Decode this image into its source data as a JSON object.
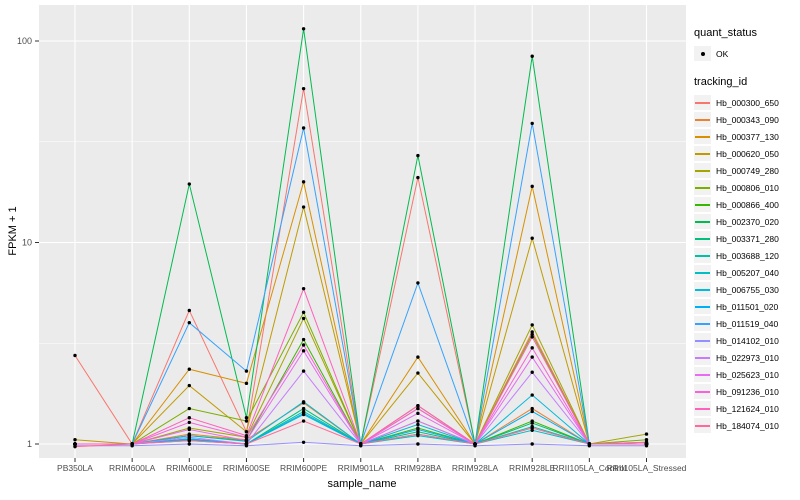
{
  "figure": {
    "panel_bg": "#EBEBEB",
    "grid_color": "#FFFFFF",
    "tick_color": "#333333",
    "tick_label_color": "#4D4D4D",
    "point_color": "#000000"
  },
  "legend": {
    "quant_status_title": "quant_status",
    "ok_label": "OK",
    "tracking_id_title": "tracking_id"
  },
  "chart_data": {
    "type": "line",
    "title": "",
    "xlabel": "sample_name",
    "ylabel": "FPKM + 1",
    "y_scale": "log10",
    "y_ticks": [
      1,
      10,
      100
    ],
    "ylim": [
      0.93,
      130
    ],
    "grid": "on",
    "legend_position": "right",
    "marker": "point",
    "categories": [
      "PB350LA",
      "RRIM600LA",
      "RRIM600LE",
      "RRIM600SE",
      "RRIM600PE",
      "RRIM901LA",
      "RRIM928BA",
      "RRIM928LA",
      "RRIM928LE",
      "RRII105LA_Control",
      "RRII105LA_Stressed"
    ],
    "series": [
      {
        "name": "Hb_000300_650",
        "color": "#F8766D",
        "values": [
          2.75,
          1,
          4.6,
          1.15,
          58,
          1,
          21,
          1,
          3.6,
          1,
          1
        ]
      },
      {
        "name": "Hb_000343_090",
        "color": "#EA8331",
        "values": [
          1,
          1,
          1.12,
          1.05,
          1.6,
          1,
          1.3,
          1,
          1.5,
          1,
          1
        ]
      },
      {
        "name": "Hb_000377_130",
        "color": "#D89000",
        "values": [
          1,
          1,
          2.35,
          2.0,
          20,
          1,
          2.7,
          1,
          19,
          1,
          1
        ]
      },
      {
        "name": "Hb_000620_050",
        "color": "#C09B00",
        "values": [
          1.05,
          1,
          1.95,
          1.15,
          15,
          1,
          2.25,
          1,
          10.5,
          1,
          1
        ]
      },
      {
        "name": "Hb_000749_280",
        "color": "#A3A500",
        "values": [
          1,
          1,
          1.2,
          1.08,
          4.2,
          1,
          1.5,
          1,
          3.9,
          1,
          1.12
        ]
      },
      {
        "name": "Hb_000806_010",
        "color": "#7CAE00",
        "values": [
          1,
          1,
          1.5,
          1.3,
          4.5,
          1,
          1.55,
          1,
          3.5,
          1,
          1.05
        ]
      },
      {
        "name": "Hb_000866_400",
        "color": "#39B600",
        "values": [
          1,
          1,
          1.1,
          1.04,
          3.3,
          1,
          1.2,
          1,
          1.3,
          1,
          1.02
        ]
      },
      {
        "name": "Hb_002370_020",
        "color": "#00BB4E",
        "values": [
          1,
          1,
          19.5,
          1.35,
          115,
          1,
          27,
          1,
          84,
          1,
          1
        ]
      },
      {
        "name": "Hb_003371_280",
        "color": "#00BF7D",
        "values": [
          1,
          1,
          1.06,
          1,
          1.5,
          1,
          1.15,
          1,
          1.27,
          1,
          1
        ]
      },
      {
        "name": "Hb_003688_120",
        "color": "#00C1A3",
        "values": [
          1,
          1,
          1.05,
          1,
          1.45,
          1,
          1.12,
          1,
          1.22,
          1,
          1
        ]
      },
      {
        "name": "Hb_005207_040",
        "color": "#00BFC4",
        "values": [
          1,
          1,
          1.04,
          1,
          1.4,
          1,
          1.1,
          1,
          1.17,
          1,
          1
        ]
      },
      {
        "name": "Hb_006755_030",
        "color": "#00BBDA",
        "values": [
          1,
          1,
          1.1,
          1.03,
          1.62,
          1,
          1.25,
          1,
          1.75,
          1,
          1
        ]
      },
      {
        "name": "Hb_011501_020",
        "color": "#00B0F6",
        "values": [
          1,
          1,
          1.06,
          1,
          1.42,
          1,
          1.18,
          1,
          1.45,
          1,
          1
        ]
      },
      {
        "name": "Hb_011519_040",
        "color": "#35A2FF",
        "values": [
          1,
          1,
          4.0,
          2.3,
          37,
          1,
          6.3,
          1,
          39,
          1,
          1
        ]
      },
      {
        "name": "Hb_014102_010",
        "color": "#9590FF",
        "values": [
          0.98,
          0.98,
          1,
          0.98,
          1.02,
          0.98,
          1,
          0.98,
          1,
          0.98,
          0.98
        ]
      },
      {
        "name": "Hb_022973_010",
        "color": "#C77CFF",
        "values": [
          1,
          1,
          1.08,
          1,
          2.3,
          1,
          1.3,
          1,
          2.27,
          1,
          1
        ]
      },
      {
        "name": "Hb_025623_010",
        "color": "#E76BF3",
        "values": [
          1,
          1,
          1.18,
          1.04,
          2.9,
          1,
          1.42,
          1,
          2.7,
          1,
          1
        ]
      },
      {
        "name": "Hb_091236_010",
        "color": "#FA62DB",
        "values": [
          1,
          1,
          1.28,
          1.08,
          3.1,
          1,
          1.5,
          1,
          3.0,
          1,
          1
        ]
      },
      {
        "name": "Hb_121624_010",
        "color": "#FF62BC",
        "values": [
          1,
          1,
          1.35,
          1.1,
          5.9,
          1,
          1.55,
          1,
          3.4,
          1,
          1.02
        ]
      },
      {
        "name": "Hb_184074_010",
        "color": "#FF6A98",
        "values": [
          0.97,
          1,
          1.04,
          1,
          1.3,
          1,
          1.12,
          1,
          1.2,
          1,
          1
        ]
      }
    ]
  }
}
